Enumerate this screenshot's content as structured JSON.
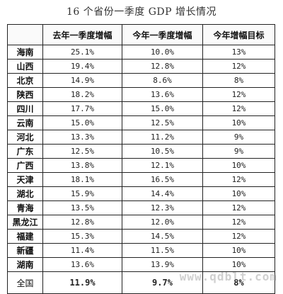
{
  "title": "16 个省份一季度 GDP 增长情况",
  "watermark": "www.qdblt.com",
  "chart_data": {
    "type": "table",
    "title": "16 个省份一季度 GDP 增长情况",
    "columns": [
      "",
      "去年一季度增幅",
      "今年一季度增幅",
      "今年增幅目标"
    ],
    "rows": [
      [
        "海南",
        "25.1%",
        "10.0%",
        "13%"
      ],
      [
        "山西",
        "19.4%",
        "12.8%",
        "12%"
      ],
      [
        "北京",
        "14.9%",
        "8.6%",
        "8%"
      ],
      [
        "陕西",
        "18.2%",
        "13.6%",
        "12%"
      ],
      [
        "四川",
        "17.7%",
        "15.0%",
        "12%"
      ],
      [
        "云南",
        "15.0%",
        "12.5%",
        "10%"
      ],
      [
        "河北",
        "13.3%",
        "11.2%",
        "9%"
      ],
      [
        "广东",
        "12.5%",
        "10.5%",
        "9%"
      ],
      [
        "广西",
        "13.8%",
        "12.1%",
        "10%"
      ],
      [
        "天津",
        "18.1%",
        "16.5%",
        "12%"
      ],
      [
        "湖北",
        "15.9%",
        "14.4%",
        "10%"
      ],
      [
        "青海",
        "13.5%",
        "12.3%",
        "12%"
      ],
      [
        "黑龙江",
        "12.8%",
        "12.0%",
        "12%"
      ],
      [
        "福建",
        "15.3%",
        "14.5%",
        "12%"
      ],
      [
        "新疆",
        "11.4%",
        "11.5%",
        "10%"
      ],
      [
        "湖南",
        "13.6%",
        "13.9%",
        "10%"
      ]
    ],
    "total": [
      "全国",
      "11.9%",
      "9.7%",
      "8%"
    ]
  }
}
